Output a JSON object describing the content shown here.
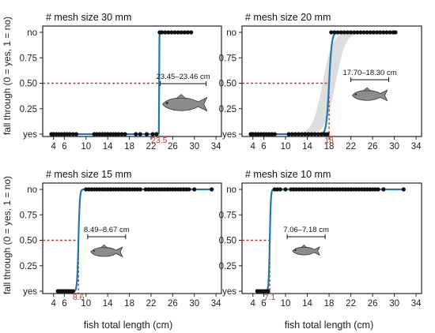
{
  "figure": {
    "ylabel": "fall through (0 = yes, 1 = no)",
    "xlabel": "fish total length (cm)",
    "y_tick_labels": [
      "yes",
      "0.25",
      "0.50",
      "0.75",
      "no"
    ],
    "colors": {
      "curve": "#1f77b4",
      "threshold": "#c0392b",
      "points": "#111111",
      "ci_band": "#d9d9d9",
      "fish": "#8c8c8c"
    },
    "icons": [
      "fish-icon"
    ]
  },
  "chart_data": [
    {
      "type": "scatter",
      "title": "# mesh size 30 mm",
      "xlim": [
        2,
        35
      ],
      "ylim": [
        0,
        1
      ],
      "x_ticks": [
        4,
        6,
        10,
        14,
        18,
        22,
        26,
        30,
        34
      ],
      "threshold": 23.5,
      "threshold_label": "23.5",
      "range_label": "23.45–23.46 cm",
      "range": [
        23.45,
        23.46
      ],
      "slope": 60,
      "ci": false,
      "points_no": [
        23.6,
        24,
        24.6,
        25.2,
        25.8,
        26.4,
        27,
        27.6,
        28.2,
        28.8,
        29.4
      ],
      "points_yes": [
        3.6,
        4,
        4.5,
        5,
        5.5,
        6,
        6.5,
        7,
        7.6,
        8.2,
        11.5,
        12,
        12.5,
        13,
        13.5,
        14,
        14.5,
        15,
        15.5,
        16,
        16.6,
        17.2,
        19.2,
        20,
        21.2,
        22.3,
        23
      ]
    },
    {
      "type": "scatter",
      "title": "# mesh size 20 mm",
      "xlim": [
        2,
        35
      ],
      "ylim": [
        0,
        1
      ],
      "x_ticks": [
        4,
        6,
        10,
        14,
        18,
        22,
        26,
        30,
        34
      ],
      "threshold": 18,
      "threshold_label": "18",
      "range_label": "17.70–18.30 cm",
      "range": [
        17.7,
        18.3
      ],
      "slope": 4,
      "ci": true,
      "points_no": [
        18.4,
        19,
        19.6,
        20.2,
        20.8,
        21.4,
        22,
        22.6,
        23.2,
        23.8,
        24.4,
        25,
        25.6,
        26.2,
        26.8,
        27.4,
        28,
        28.6,
        29.2,
        29.8,
        30.2
      ],
      "points_yes": [
        3.6,
        4,
        4.5,
        5,
        5.5,
        6,
        6.5,
        7,
        7.5,
        8,
        10.6,
        11.2,
        11.8,
        12.4,
        13,
        13.6,
        14.2,
        14.8,
        15.4,
        16,
        16.6,
        17.2,
        17.7
      ]
    },
    {
      "type": "scatter",
      "title": "# mesh size 15 mm",
      "xlim": [
        2,
        35
      ],
      "ylim": [
        0,
        1
      ],
      "x_ticks": [
        4,
        6,
        10,
        14,
        18,
        22,
        26,
        30,
        34
      ],
      "threshold": 8.6,
      "threshold_label": "8.6",
      "range_label": "8.49–8.67 cm",
      "range": [
        8.49,
        8.67
      ],
      "slope": 8,
      "ci": false,
      "points_no": [
        10,
        10.5,
        11,
        11.5,
        12,
        12.5,
        13,
        13.5,
        14,
        14.5,
        15,
        15.5,
        16,
        16.5,
        17,
        17.5,
        18,
        18.5,
        19,
        19.5,
        20,
        21,
        21.5,
        22,
        22.5,
        23,
        23.5,
        24,
        24.5,
        25,
        25.5,
        26,
        26.5,
        27,
        27.5,
        28,
        28.5,
        29,
        30,
        33.2
      ],
      "points_yes": [
        4.8,
        5.2,
        5.6,
        6,
        6.4,
        6.8,
        7.2,
        7.6
      ]
    },
    {
      "type": "scatter",
      "title": "# mesh size 10 mm",
      "xlim": [
        2,
        35
      ],
      "ylim": [
        0,
        1
      ],
      "x_ticks": [
        4,
        6,
        10,
        14,
        18,
        22,
        26,
        30,
        34
      ],
      "threshold": 7.1,
      "threshold_label": "7.1",
      "range_label": "7.06–7.18 cm",
      "range": [
        7.06,
        7.18
      ],
      "slope": 10,
      "ci": false,
      "points_no": [
        8,
        8.5,
        9,
        10,
        11,
        11.5,
        12,
        12.5,
        13,
        13.5,
        14,
        14.5,
        15,
        15.5,
        16,
        16.5,
        17,
        17.5,
        18,
        18.5,
        19,
        19.5,
        20,
        20.5,
        21,
        21.5,
        22,
        22.5,
        23,
        23.5,
        24,
        24.5,
        25,
        25.5,
        26,
        26.5,
        27,
        28,
        31.7
      ],
      "points_yes": [
        4.8,
        5.2,
        5.6,
        6,
        6.4,
        6.8
      ]
    }
  ]
}
